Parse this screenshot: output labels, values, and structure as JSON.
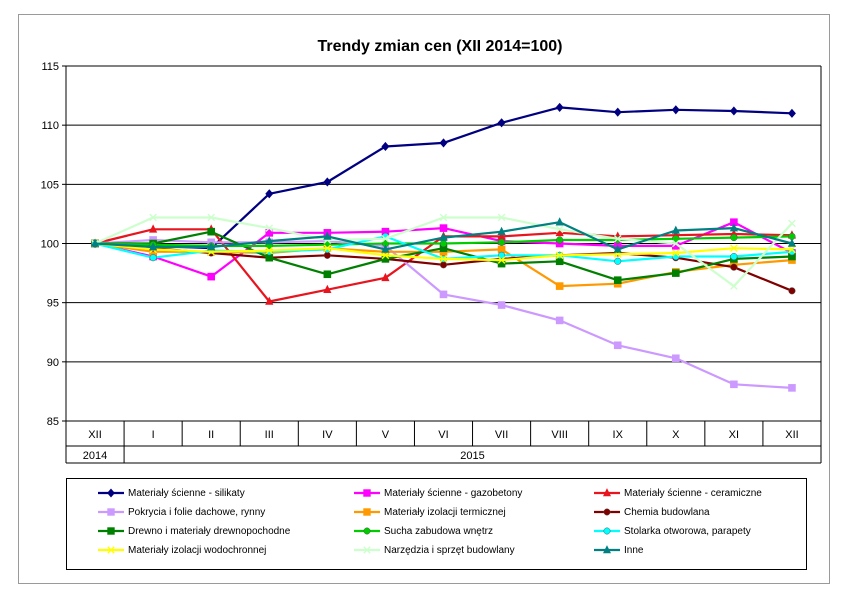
{
  "chart_data": {
    "type": "line",
    "title": "Trendy zmian cen (XII 2014=100)",
    "xlabel": "",
    "ylabel": "",
    "ylim": [
      85,
      115
    ],
    "yticks": [
      85,
      90,
      95,
      100,
      105,
      110,
      115
    ],
    "grid": "horizontal",
    "legend_position": "bottom",
    "categories": [
      "XII",
      "I",
      "II",
      "III",
      "IV",
      "V",
      "VI",
      "VII",
      "VIII",
      "IX",
      "X",
      "XI",
      "XII"
    ],
    "year_groups": [
      {
        "label": "2014",
        "span": 1
      },
      {
        "label": "2015",
        "span": 12
      }
    ],
    "series": [
      {
        "name": "Materiały ścienne - silikaty",
        "color": "#000080",
        "marker": "diamond",
        "values": [
          100,
          99.8,
          99.6,
          104.2,
          105.2,
          108.2,
          108.5,
          110.2,
          111.5,
          111.1,
          111.3,
          111.2,
          111.0
        ]
      },
      {
        "name": "Materiały ścienne - gazobetony",
        "color": "#ff00ff",
        "marker": "square",
        "values": [
          100,
          98.9,
          97.2,
          100.9,
          100.9,
          101.0,
          101.3,
          100.2,
          100.0,
          99.8,
          99.8,
          101.8,
          99.2
        ]
      },
      {
        "name": "Materiały ścienne - ceramiczne",
        "color": "#e8141e",
        "marker": "triangle",
        "values": [
          100,
          101.2,
          101.2,
          95.1,
          96.1,
          97.1,
          100.6,
          100.6,
          100.9,
          100.6,
          100.7,
          100.8,
          100.7
        ]
      },
      {
        "name": "Pokrycia i folie dachowe, rynny",
        "color": "#cc99ff",
        "marker": "square",
        "values": [
          100,
          100.3,
          100.1,
          100.1,
          100.2,
          99.8,
          95.7,
          94.8,
          93.5,
          91.4,
          90.3,
          88.1,
          87.8
        ]
      },
      {
        "name": "Materiały izolacji termicznej",
        "color": "#ff9900",
        "marker": "square",
        "values": [
          100,
          99.3,
          99.3,
          99.2,
          99.6,
          99.3,
          99.3,
          99.5,
          96.4,
          96.6,
          97.6,
          98.2,
          98.6
        ]
      },
      {
        "name": "Chemia budowlana",
        "color": "#800000",
        "marker": "circle",
        "values": [
          100,
          99.6,
          99.2,
          98.8,
          99.0,
          98.7,
          98.2,
          98.7,
          99.0,
          99.2,
          98.8,
          98.0,
          96.0
        ]
      },
      {
        "name": "Drewno i materiały drewnopochodne",
        "color": "#008000",
        "marker": "square",
        "values": [
          100,
          100.0,
          101.0,
          98.8,
          97.4,
          98.7,
          99.6,
          98.3,
          98.5,
          96.9,
          97.5,
          98.7,
          98.9
        ]
      },
      {
        "name": "Sucha zabudowa wnętrz",
        "color": "#00cc00",
        "marker": "circle",
        "values": [
          100,
          99.9,
          99.8,
          99.8,
          99.9,
          100.0,
          100.0,
          100.1,
          100.3,
          100.3,
          100.4,
          100.5,
          100.6
        ]
      },
      {
        "name": "Stolarka otworowa, parapety",
        "color": "#00ffff",
        "marker": "circle",
        "values": [
          100,
          98.8,
          99.4,
          99.3,
          99.5,
          100.6,
          98.7,
          99.0,
          99.0,
          98.5,
          98.9,
          98.9,
          99.3
        ]
      },
      {
        "name": "Materiały izolacji wodochronnej",
        "color": "#ffff00",
        "marker": "x",
        "values": [
          100,
          99.5,
          99.3,
          99.4,
          99.6,
          99.0,
          98.7,
          98.6,
          99.0,
          99.1,
          99.2,
          99.6,
          99.5
        ]
      },
      {
        "name": "Narzędzia i sprzęt budowlany",
        "color": "#ccffcc",
        "marker": "x",
        "values": [
          100,
          102.2,
          102.2,
          101.3,
          100.3,
          100.4,
          102.2,
          102.2,
          101.2,
          100.4,
          100.0,
          96.4,
          101.7
        ]
      },
      {
        "name": "Inne",
        "color": "#008080",
        "marker": "triangle",
        "values": [
          100,
          99.7,
          99.7,
          100.2,
          100.6,
          99.5,
          100.5,
          101.0,
          101.8,
          99.5,
          101.1,
          101.3,
          100.0
        ]
      }
    ]
  }
}
